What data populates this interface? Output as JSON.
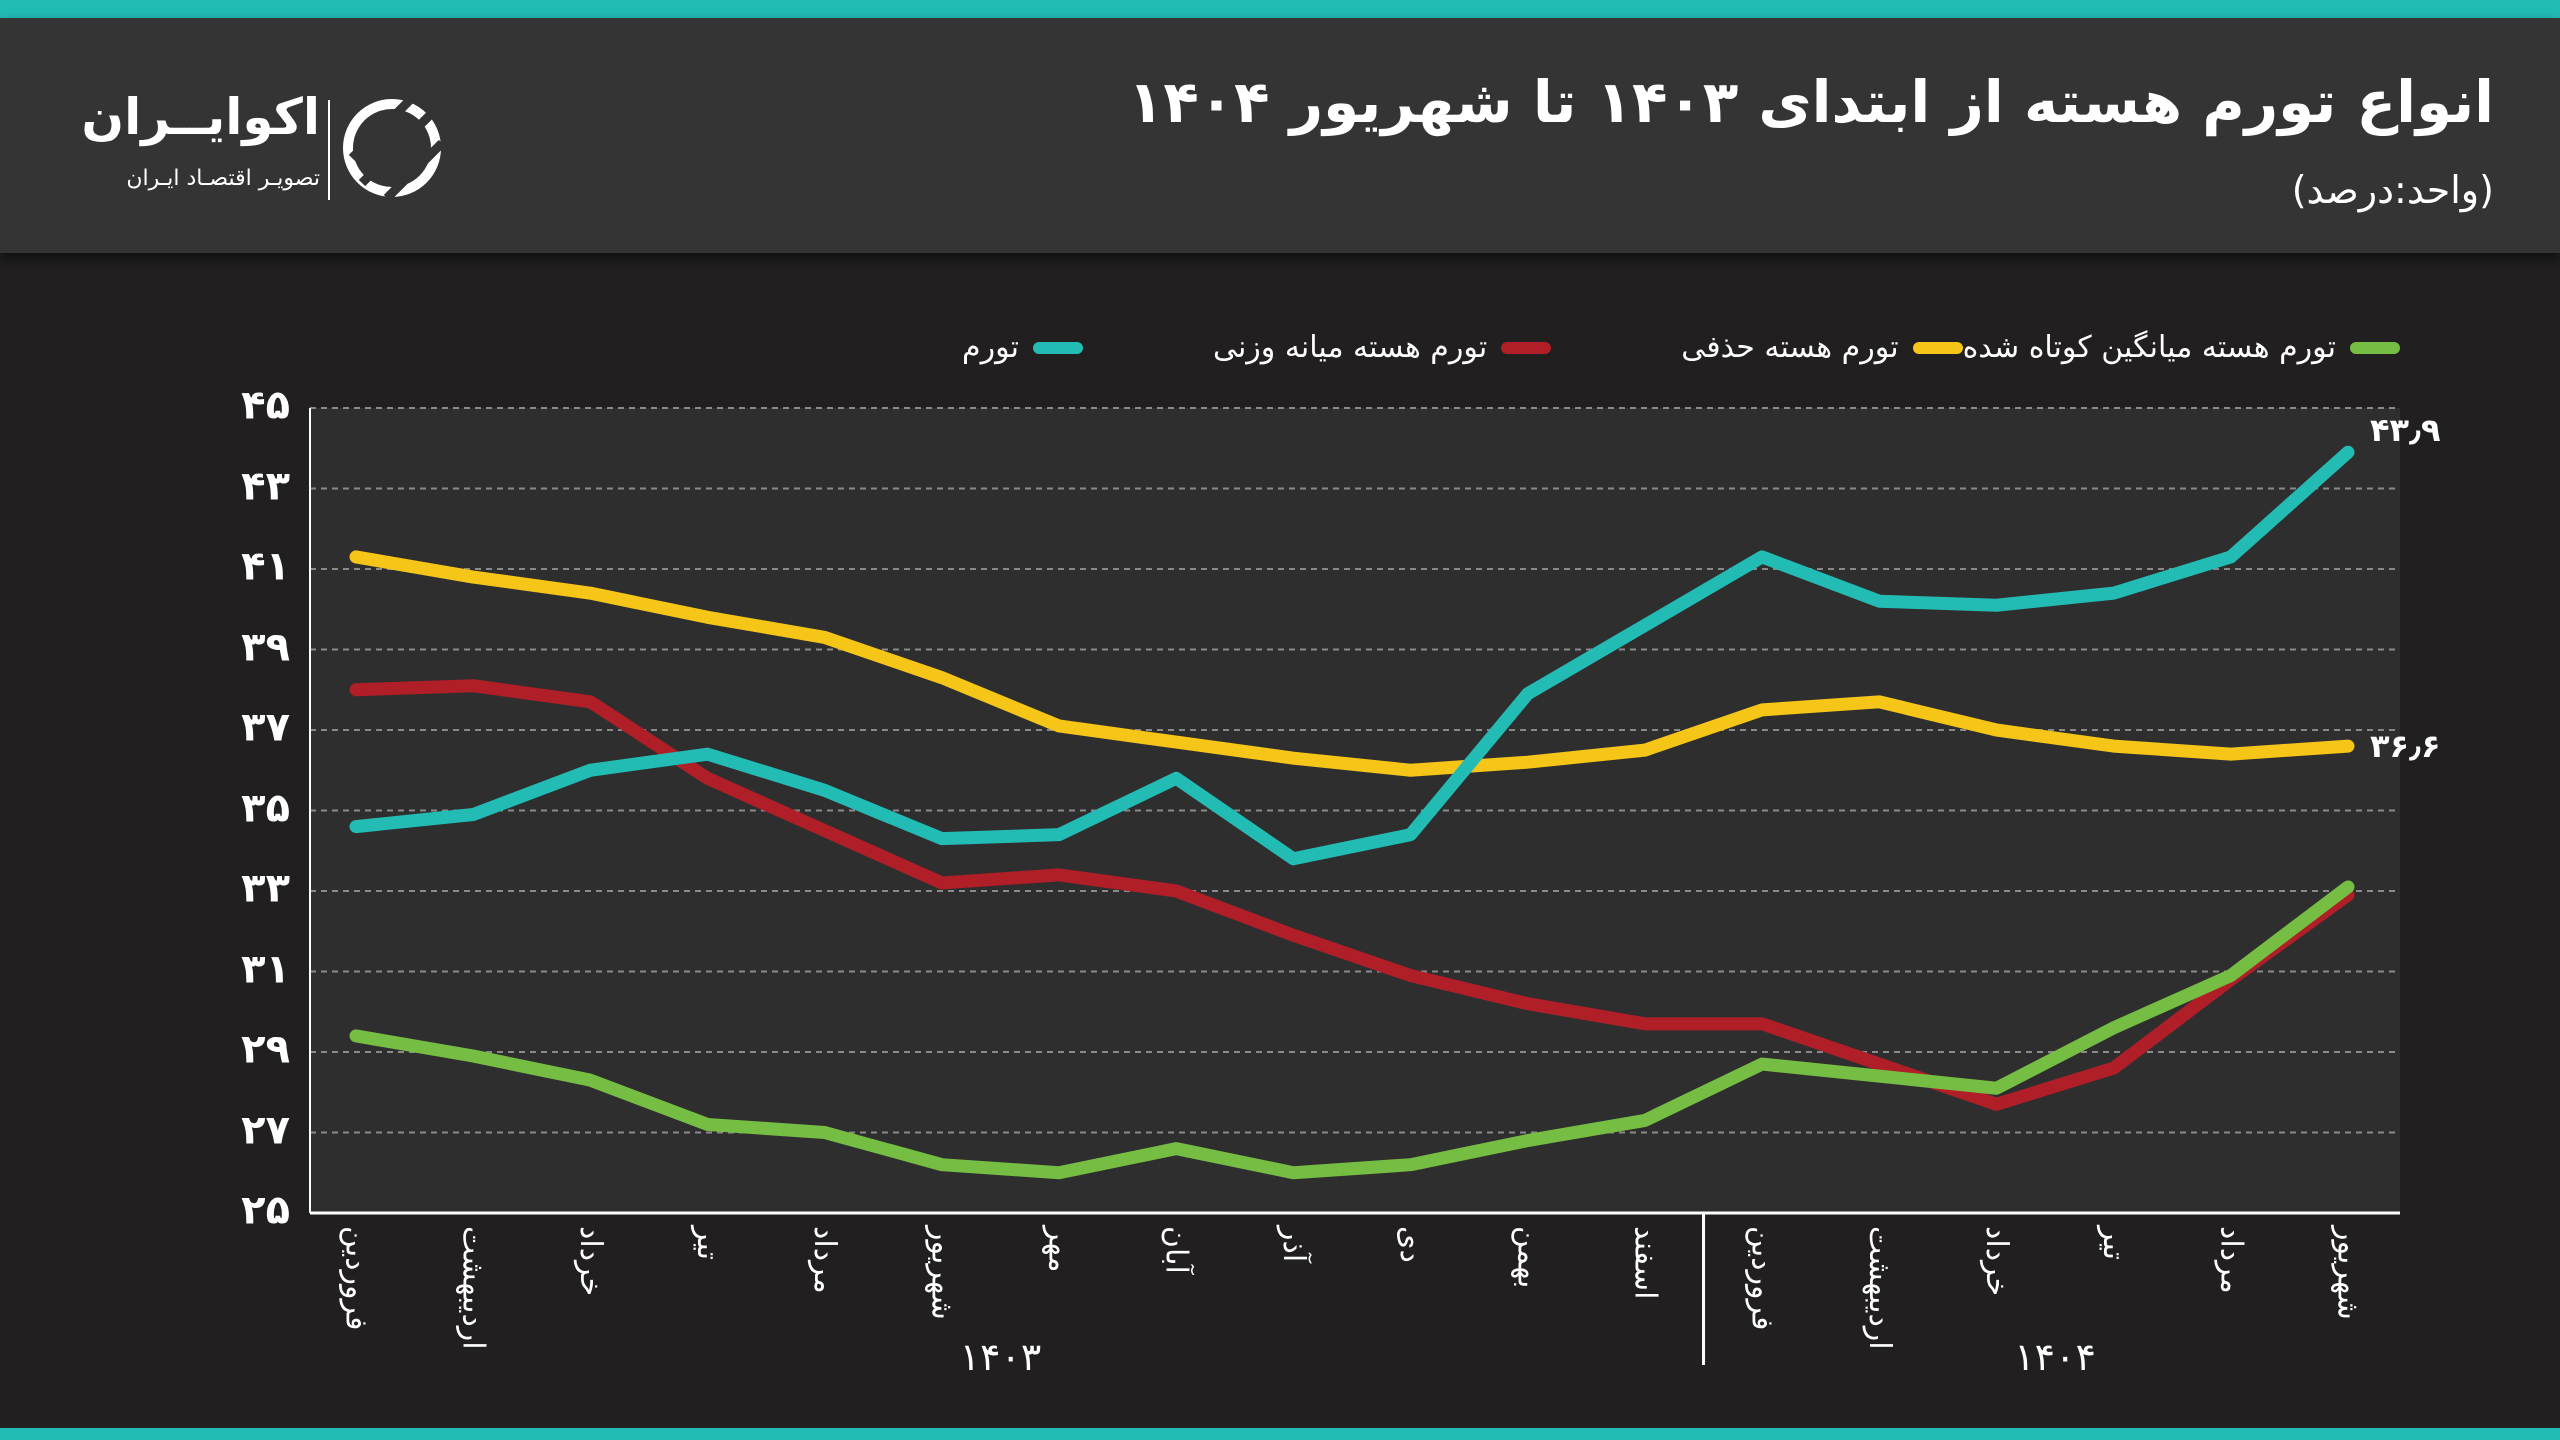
{
  "header": {
    "title": "انواع تورم هسته از ابتدای ۱۴۰۳ تا شهریور ۱۴۰۴",
    "subtitle": "(واحد:درصد)",
    "logo_name": "اکوایــران",
    "logo_tagline": "تصویـر اقتصـاد ایـران"
  },
  "colors": {
    "accent": "#22bcb5",
    "teal": "#22bcb5",
    "red": "#b01e27",
    "yellow": "#f5c518",
    "green": "#76bd43"
  },
  "chart_data": {
    "type": "line",
    "title": "انواع تورم هسته از ابتدای ۱۴۰۳ تا شهریور ۱۴۰۴",
    "ylabel": "درصد",
    "ylim": [
      25,
      45
    ],
    "yticks": [
      45,
      43,
      41,
      39,
      37,
      35,
      33,
      31,
      29,
      27,
      25
    ],
    "ytick_labels": [
      "۴۵",
      "۴۳",
      "۴۱",
      "۳۹",
      "۳۷",
      "۳۵",
      "۳۳",
      "۳۱",
      "۲۹",
      "۲۷",
      "۲۵"
    ],
    "grid": true,
    "legend_position": "top",
    "categories": [
      "فروردین",
      "اردیبهشت",
      "خرداد",
      "تیر",
      "مرداد",
      "شهریور",
      "مهر",
      "آبان",
      "آذر",
      "دی",
      "بهمن",
      "اسفند",
      "فروردین",
      "اردیبهشت",
      "خرداد",
      "تیر",
      "مرداد",
      "شهریور"
    ],
    "year_groups": [
      {
        "label": "۱۴۰۳",
        "count": 12
      },
      {
        "label": "۱۴۰۴",
        "count": 6
      }
    ],
    "series": [
      {
        "name": "تورم",
        "color": "#22bcb5",
        "values": [
          34.6,
          34.9,
          36.0,
          36.4,
          35.5,
          34.3,
          34.4,
          35.8,
          33.8,
          34.4,
          37.9,
          39.6,
          41.3,
          40.2,
          40.1,
          40.4,
          41.3,
          43.9
        ],
        "end_label": "۴۳٫۹"
      },
      {
        "name": "تورم هسته میانه وزنی",
        "color": "#b01e27",
        "values": [
          38.0,
          38.1,
          37.7,
          35.8,
          34.5,
          33.2,
          33.4,
          33.0,
          31.9,
          30.9,
          30.2,
          29.7,
          29.7,
          28.7,
          27.7,
          28.6,
          30.8,
          32.9
        ]
      },
      {
        "name": "تورم هسته حذفی",
        "color": "#f5c518",
        "values": [
          41.3,
          40.8,
          40.4,
          39.8,
          39.3,
          38.3,
          37.1,
          36.7,
          36.3,
          36.0,
          36.2,
          36.5,
          37.5,
          37.7,
          37.0,
          36.6,
          36.4,
          36.6
        ],
        "end_label": "۳۶٫۶"
      },
      {
        "name": "تورم هسته میانگین کوتاه شده",
        "color": "#76bd43",
        "values": [
          29.4,
          28.9,
          28.3,
          27.2,
          27.0,
          26.2,
          26.0,
          26.6,
          26.0,
          26.2,
          26.8,
          27.3,
          28.7,
          28.4,
          28.1,
          29.6,
          30.9,
          33.1
        ]
      }
    ]
  }
}
